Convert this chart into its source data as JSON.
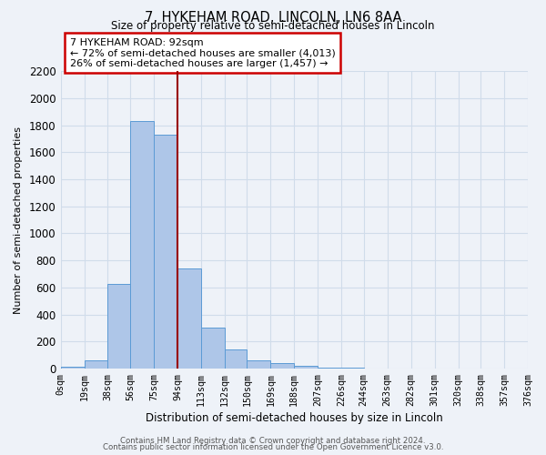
{
  "title": "7, HYKEHAM ROAD, LINCOLN, LN6 8AA",
  "subtitle": "Size of property relative to semi-detached houses in Lincoln",
  "xlabel": "Distribution of semi-detached houses by size in Lincoln",
  "ylabel": "Number of semi-detached properties",
  "bin_labels": [
    "0sqm",
    "19sqm",
    "38sqm",
    "56sqm",
    "75sqm",
    "94sqm",
    "113sqm",
    "132sqm",
    "150sqm",
    "169sqm",
    "188sqm",
    "207sqm",
    "226sqm",
    "244sqm",
    "263sqm",
    "282sqm",
    "301sqm",
    "320sqm",
    "338sqm",
    "357sqm",
    "376sqm"
  ],
  "bin_edges": [
    0,
    19,
    38,
    56,
    75,
    94,
    113,
    132,
    150,
    169,
    188,
    207,
    226,
    244,
    263,
    282,
    301,
    320,
    338,
    357,
    376
  ],
  "bar_values": [
    15,
    60,
    630,
    1830,
    1730,
    740,
    305,
    140,
    65,
    40,
    20,
    5,
    5,
    0,
    0,
    0,
    0,
    0,
    0,
    0
  ],
  "bar_color": "#aec6e8",
  "bar_edge_color": "#5b9bd5",
  "vline_x": 94,
  "vline_color": "#990000",
  "annotation_line1": "7 HYKEHAM ROAD: 92sqm",
  "annotation_line2": "← 72% of semi-detached houses are smaller (4,013)",
  "annotation_line3": "26% of semi-detached houses are larger (1,457) →",
  "annotation_box_color": "#ffffff",
  "annotation_box_edge_color": "#cc0000",
  "ylim": [
    0,
    2200
  ],
  "yticks": [
    0,
    200,
    400,
    600,
    800,
    1000,
    1200,
    1400,
    1600,
    1800,
    2000,
    2200
  ],
  "grid_color": "#d0dcea",
  "background_color": "#eef2f8",
  "footer_line1": "Contains HM Land Registry data © Crown copyright and database right 2024.",
  "footer_line2": "Contains public sector information licensed under the Open Government Licence v3.0."
}
